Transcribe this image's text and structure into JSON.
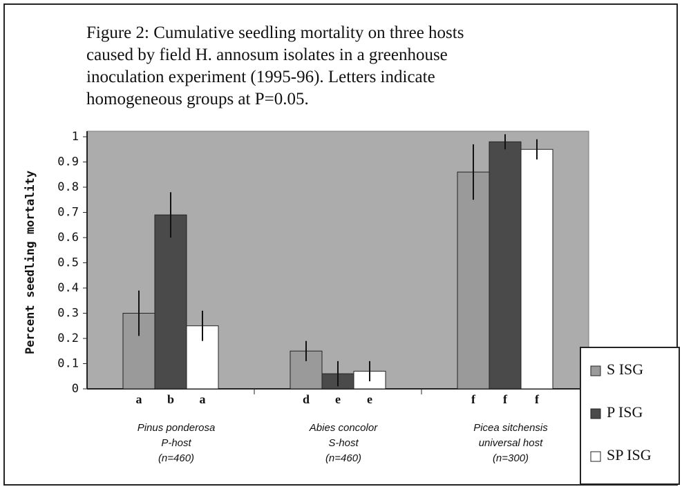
{
  "chart_data": {
    "type": "bar",
    "title": [
      "Figure 2: Cumulative seedling mortality on three hosts",
      "caused by field H. annosum isolates in a greenhouse",
      "inoculation experiment (1995-96). Letters indicate",
      "homogeneous groups at P=0.05."
    ],
    "ylabel": "Percent seedling mortality",
    "categories": [
      [
        "Pinus ponderosa",
        "P-host",
        "(n=460)"
      ],
      [
        "Abies concolor",
        "S-host",
        "(n=460)"
      ],
      [
        "Picea sitchensis",
        "universal host",
        "(n=300)"
      ]
    ],
    "series": [
      {
        "name": "S ISG",
        "color": "#9a9a9a",
        "values": [
          0.3,
          0.15,
          0.86
        ],
        "errors": [
          0.09,
          0.04,
          0.11
        ],
        "letters": [
          "a",
          "d",
          "f"
        ]
      },
      {
        "name": "P ISG",
        "color": "#4a4a4a",
        "values": [
          0.69,
          0.06,
          0.98
        ],
        "errors": [
          0.09,
          0.05,
          0.03
        ],
        "letters": [
          "b",
          "e",
          "f"
        ]
      },
      {
        "name": "SP ISG",
        "color": "#ffffff",
        "values": [
          0.25,
          0.07,
          0.95
        ],
        "errors": [
          0.06,
          0.04,
          0.04
        ],
        "letters": [
          "a",
          "e",
          "f"
        ]
      }
    ],
    "ylim": [
      0,
      1
    ],
    "yticks": [
      0,
      0.1,
      0.2,
      0.3,
      0.4,
      0.5,
      0.6,
      0.7,
      0.8,
      0.9,
      1
    ],
    "legend": "lower right"
  }
}
